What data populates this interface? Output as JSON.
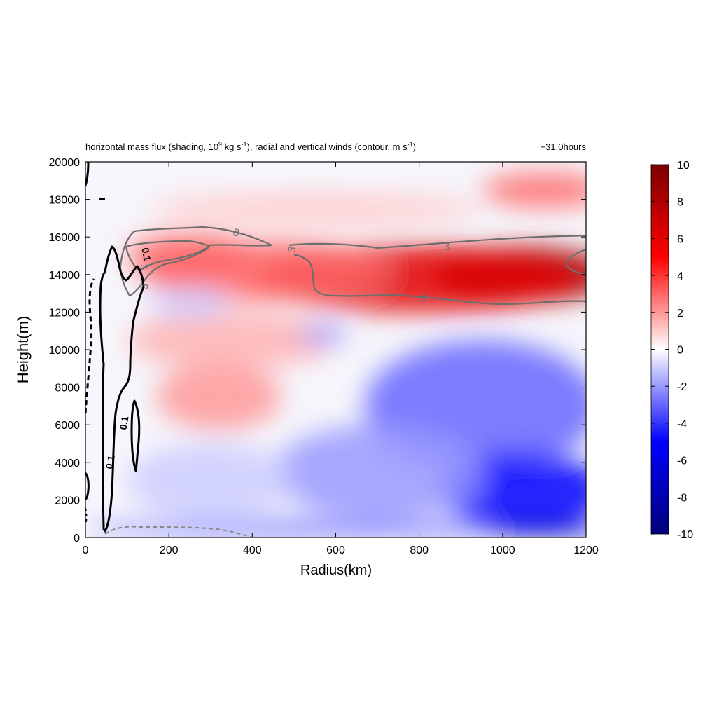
{
  "chart_data": {
    "type": "heatmap",
    "title_main": "horizontal mass flux (shading, 10",
    "title_main_sup": "9",
    "title_main_mid": " kg s",
    "title_main_sup2": "-1",
    "title_main_rest": "), radial and vertical winds (contour, m s",
    "title_main_sup3": "-1",
    "title_main_end": ")",
    "time_label": "+31.0hours",
    "xlabel": "Radius(km)",
    "ylabel": "Height(m)",
    "xlim": [
      0,
      1200
    ],
    "ylim": [
      0,
      20000
    ],
    "x_ticks": [
      0,
      200,
      400,
      600,
      800,
      1000,
      1200
    ],
    "y_ticks": [
      0,
      2000,
      4000,
      6000,
      8000,
      10000,
      12000,
      14000,
      16000,
      18000,
      20000
    ],
    "colorbar": {
      "range": [
        -10,
        10
      ],
      "ticks": [
        10,
        8,
        6,
        4,
        2,
        0,
        -2,
        -4,
        -6,
        -8,
        -10
      ],
      "colors": [
        "#7a0000",
        "#ff0000",
        "#ffffff",
        "#0000ff",
        "#00007a"
      ]
    },
    "contour_labels": {
      "radial": "3",
      "vertical": "0.1"
    },
    "shading_blobs": [
      {
        "x": 1050,
        "y": 14000,
        "rx": 220,
        "ry": 1500,
        "value": 9
      },
      {
        "x": 800,
        "y": 13800,
        "rx": 400,
        "ry": 1800,
        "value": 6
      },
      {
        "x": 430,
        "y": 14200,
        "rx": 300,
        "ry": 1600,
        "value": 3
      },
      {
        "x": 250,
        "y": 15000,
        "rx": 150,
        "ry": 1200,
        "value": 3
      },
      {
        "x": 1100,
        "y": 18500,
        "rx": 150,
        "ry": 900,
        "value": 3
      },
      {
        "x": 550,
        "y": 17500,
        "rx": 400,
        "ry": 900,
        "value": 1
      },
      {
        "x": 320,
        "y": 7500,
        "rx": 150,
        "ry": 1800,
        "value": 2
      },
      {
        "x": 350,
        "y": 10500,
        "rx": 250,
        "ry": 1500,
        "value": 1.5
      },
      {
        "x": 570,
        "y": 10800,
        "rx": 60,
        "ry": 500,
        "value": -2
      },
      {
        "x": 950,
        "y": 7000,
        "rx": 280,
        "ry": 3500,
        "value": -3
      },
      {
        "x": 1050,
        "y": 2500,
        "rx": 200,
        "ry": 2000,
        "value": -5
      },
      {
        "x": 700,
        "y": 3500,
        "rx": 250,
        "ry": 2500,
        "value": -2
      },
      {
        "x": 600,
        "y": 500,
        "rx": 600,
        "ry": 400,
        "value": -3
      },
      {
        "x": 1100,
        "y": 500,
        "rx": 150,
        "ry": 400,
        "value": -7
      },
      {
        "x": 250,
        "y": 12500,
        "rx": 100,
        "ry": 800,
        "value": -1
      },
      {
        "x": 300,
        "y": 3000,
        "rx": 200,
        "ry": 2000,
        "value": -1
      }
    ]
  }
}
